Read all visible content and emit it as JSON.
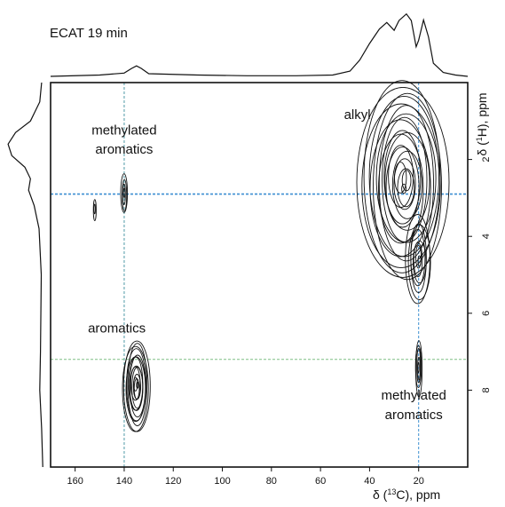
{
  "chart_data": {
    "type": "contour",
    "title": "ECAT 19 min",
    "xlabel": "δ (13C), ppm",
    "xlabel_parts": {
      "prefix": "δ (",
      "sup": "13",
      "suffix": "C), ppm"
    },
    "ylabel": "δ (1H), ppm",
    "ylabel_parts": {
      "prefix": "δ (",
      "sup": "1",
      "suffix": "H), ppm"
    },
    "xlim": [
      170,
      0
    ],
    "ylim": [
      0,
      10
    ],
    "x_ticks": [
      160,
      140,
      120,
      100,
      80,
      60,
      40,
      20
    ],
    "y_ticks": [
      2,
      4,
      6,
      8
    ],
    "grid": false,
    "reference_lines": {
      "vertical": [
        {
          "x": 140,
          "color": "#4f9aa6"
        },
        {
          "x": 20,
          "color": "#3c8fd1"
        }
      ],
      "horizontal": [
        {
          "y": 2.9,
          "color": "#3c8fd1"
        },
        {
          "y": 7.2,
          "color": "#7fbf84"
        }
      ]
    },
    "annotations": [
      {
        "text": "methylated",
        "x": 140,
        "y": 1.35
      },
      {
        "text": "aromatics",
        "x": 140,
        "y": 1.85
      },
      {
        "text": "alkyl",
        "x": 45,
        "y": 0.95
      },
      {
        "text": "aromatics",
        "x": 143,
        "y": 6.5
      },
      {
        "text": "methylated",
        "x": 22,
        "y": 8.25
      },
      {
        "text": "aromatics",
        "x": 22,
        "y": 8.75
      }
    ],
    "peaks": [
      {
        "name": "alkyl",
        "x": 26,
        "y": 2.6,
        "x_width": 18,
        "y_width": 2.7,
        "levels": 20
      },
      {
        "name": "alkyl-tail",
        "x": 20,
        "y": 4.6,
        "x_width": 5,
        "y_width": 1.2,
        "levels": 8
      },
      {
        "name": "aromatics",
        "x": 135,
        "y": 7.9,
        "x_width": 5.5,
        "y_width": 1.25,
        "levels": 14
      },
      {
        "name": "methylated-aromatics-aromatic",
        "x": 140,
        "y": 2.9,
        "x_width": 1.3,
        "y_width": 0.55,
        "levels": 4
      },
      {
        "name": "methylated-aromatics-small",
        "x": 152,
        "y": 3.3,
        "x_width": 0.6,
        "y_width": 0.28,
        "levels": 2
      },
      {
        "name": "methylated-aromatics-methyl",
        "x": 20,
        "y": 7.4,
        "x_width": 1.4,
        "y_width": 0.75,
        "levels": 5
      }
    ],
    "top_projection": [
      [
        170,
        0.0
      ],
      [
        150,
        0.02
      ],
      [
        140,
        0.05
      ],
      [
        137,
        0.12
      ],
      [
        135,
        0.16
      ],
      [
        133,
        0.12
      ],
      [
        130,
        0.04
      ],
      [
        110,
        0.02
      ],
      [
        90,
        0.01
      ],
      [
        70,
        0.01
      ],
      [
        55,
        0.02
      ],
      [
        48,
        0.08
      ],
      [
        44,
        0.25
      ],
      [
        40,
        0.5
      ],
      [
        36,
        0.72
      ],
      [
        33,
        0.82
      ],
      [
        30,
        0.7
      ],
      [
        28,
        0.85
      ],
      [
        25,
        0.95
      ],
      [
        23,
        0.85
      ],
      [
        21,
        0.45
      ],
      [
        20,
        0.55
      ],
      [
        18,
        0.86
      ],
      [
        16,
        0.6
      ],
      [
        14,
        0.2
      ],
      [
        10,
        0.06
      ],
      [
        5,
        0.02
      ],
      [
        0,
        0.0
      ]
    ],
    "left_projection": [
      [
        0,
        0.05
      ],
      [
        0.5,
        0.1
      ],
      [
        1.0,
        0.35
      ],
      [
        1.3,
        0.75
      ],
      [
        1.6,
        0.95
      ],
      [
        1.9,
        0.85
      ],
      [
        2.2,
        0.5
      ],
      [
        2.5,
        0.35
      ],
      [
        2.8,
        0.4
      ],
      [
        3.2,
        0.25
      ],
      [
        3.8,
        0.12
      ],
      [
        5.0,
        0.06
      ],
      [
        7.0,
        0.08
      ],
      [
        8.0,
        0.1
      ],
      [
        9.0,
        0.05
      ],
      [
        10,
        0.02
      ]
    ]
  }
}
